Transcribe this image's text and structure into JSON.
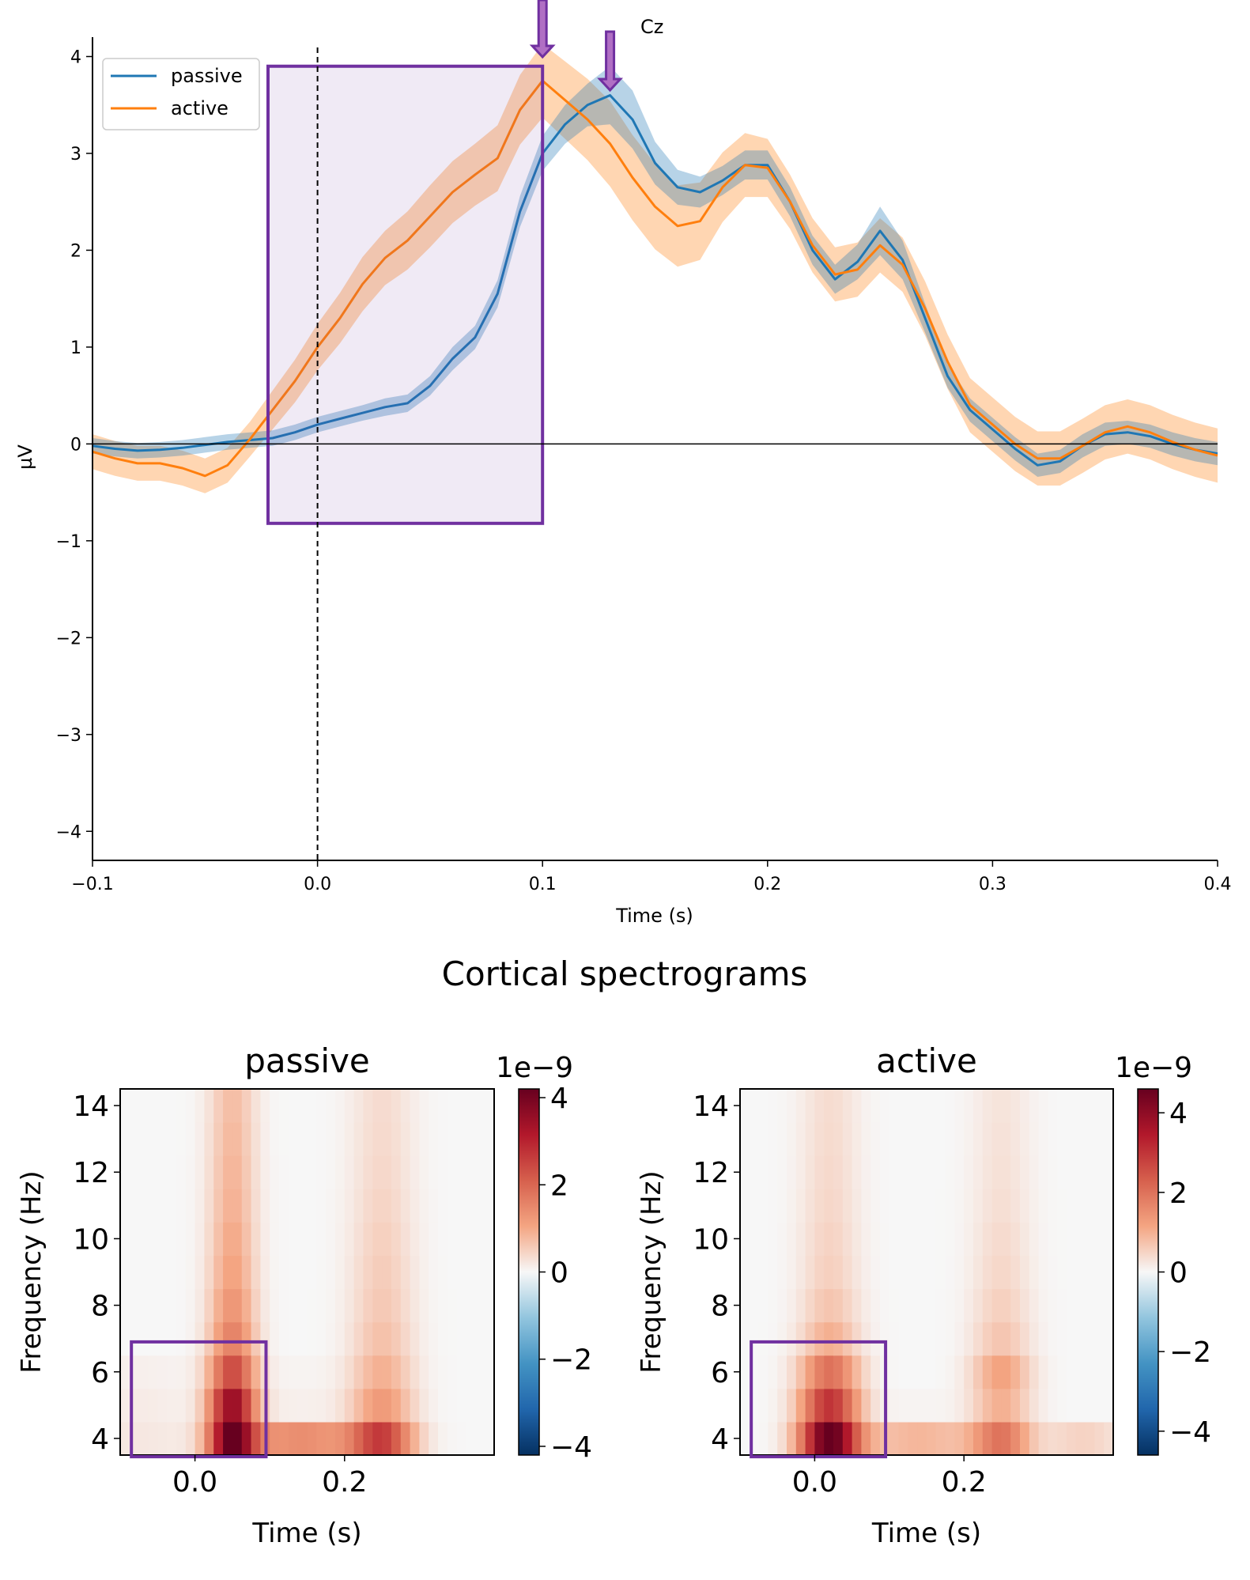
{
  "chart_data": [
    {
      "type": "line",
      "title": "Cz",
      "xlabel": "Time (s)",
      "ylabel": "µV",
      "xlim": [
        -0.1,
        0.4
      ],
      "ylim": [
        -4.3,
        4.2
      ],
      "xticks": [
        -0.1,
        0.0,
        0.1,
        0.2,
        0.3,
        0.4
      ],
      "xtick_labels": [
        "−0.1",
        "0.0",
        "0.1",
        "0.2",
        "0.3",
        "0.4"
      ],
      "yticks": [
        4,
        3,
        2,
        1,
        0,
        -1,
        -2,
        -3,
        -4
      ],
      "ytick_labels": [
        "4",
        "3",
        "2",
        "1",
        "0",
        "−1",
        "−2",
        "−3",
        "−4"
      ],
      "legend_position": "top-left",
      "zero_line": true,
      "stimulus_onset_line_x": 0.0,
      "highlight_window": {
        "x": [
          -0.022,
          0.1
        ],
        "y": [
          -0.82,
          3.9
        ],
        "color": "#7030a0"
      },
      "peak_arrows": [
        {
          "x": 0.1
        },
        {
          "x": 0.13
        }
      ],
      "series": [
        {
          "name": "passive",
          "color": "#1f77b4",
          "x": [
            -0.1,
            -0.09,
            -0.08,
            -0.07,
            -0.06,
            -0.05,
            -0.04,
            -0.03,
            -0.02,
            -0.01,
            0.0,
            0.01,
            0.02,
            0.03,
            0.04,
            0.05,
            0.06,
            0.07,
            0.08,
            0.09,
            0.1,
            0.11,
            0.12,
            0.13,
            0.14,
            0.15,
            0.16,
            0.17,
            0.18,
            0.19,
            0.2,
            0.21,
            0.22,
            0.23,
            0.24,
            0.25,
            0.26,
            0.27,
            0.28,
            0.29,
            0.3,
            0.31,
            0.32,
            0.33,
            0.34,
            0.35,
            0.36,
            0.37,
            0.38,
            0.39,
            0.4
          ],
          "y": [
            -0.02,
            -0.05,
            -0.07,
            -0.06,
            -0.04,
            -0.01,
            0.02,
            0.04,
            0.06,
            0.12,
            0.2,
            0.26,
            0.32,
            0.38,
            0.42,
            0.6,
            0.88,
            1.1,
            1.55,
            2.4,
            3.0,
            3.3,
            3.5,
            3.6,
            3.35,
            2.9,
            2.65,
            2.6,
            2.72,
            2.88,
            2.88,
            2.5,
            2.0,
            1.7,
            1.88,
            2.2,
            1.9,
            1.3,
            0.7,
            0.35,
            0.15,
            -0.05,
            -0.22,
            -0.18,
            -0.02,
            0.1,
            0.12,
            0.08,
            0.0,
            -0.06,
            -0.1
          ],
          "ci": [
            0.08,
            0.08,
            0.08,
            0.08,
            0.08,
            0.08,
            0.08,
            0.08,
            0.08,
            0.08,
            0.08,
            0.08,
            0.08,
            0.09,
            0.09,
            0.1,
            0.12,
            0.12,
            0.14,
            0.16,
            0.18,
            0.2,
            0.22,
            0.3,
            0.3,
            0.22,
            0.18,
            0.16,
            0.15,
            0.15,
            0.15,
            0.15,
            0.15,
            0.15,
            0.18,
            0.25,
            0.2,
            0.15,
            0.12,
            0.12,
            0.12,
            0.12,
            0.12,
            0.12,
            0.12,
            0.12,
            0.12,
            0.12,
            0.12,
            0.12,
            0.12
          ]
        },
        {
          "name": "active",
          "color": "#ff7f0e",
          "x": [
            -0.1,
            -0.09,
            -0.08,
            -0.07,
            -0.06,
            -0.05,
            -0.04,
            -0.03,
            -0.02,
            -0.01,
            0.0,
            0.01,
            0.02,
            0.03,
            0.04,
            0.05,
            0.06,
            0.07,
            0.08,
            0.09,
            0.1,
            0.11,
            0.12,
            0.13,
            0.14,
            0.15,
            0.16,
            0.17,
            0.18,
            0.19,
            0.2,
            0.21,
            0.22,
            0.23,
            0.24,
            0.25,
            0.26,
            0.27,
            0.28,
            0.29,
            0.3,
            0.31,
            0.32,
            0.33,
            0.34,
            0.35,
            0.36,
            0.37,
            0.38,
            0.39,
            0.4
          ],
          "y": [
            -0.08,
            -0.15,
            -0.2,
            -0.2,
            -0.25,
            -0.33,
            -0.22,
            0.05,
            0.35,
            0.65,
            1.0,
            1.3,
            1.65,
            1.92,
            2.1,
            2.35,
            2.6,
            2.78,
            2.95,
            3.45,
            3.75,
            3.55,
            3.35,
            3.1,
            2.75,
            2.45,
            2.25,
            2.3,
            2.65,
            2.88,
            2.85,
            2.5,
            2.05,
            1.75,
            1.8,
            2.05,
            1.85,
            1.4,
            0.85,
            0.4,
            0.2,
            0.0,
            -0.15,
            -0.15,
            -0.02,
            0.12,
            0.18,
            0.12,
            0.02,
            -0.06,
            -0.12
          ],
          "ci": [
            0.18,
            0.18,
            0.18,
            0.18,
            0.18,
            0.18,
            0.18,
            0.18,
            0.2,
            0.22,
            0.24,
            0.26,
            0.28,
            0.28,
            0.3,
            0.32,
            0.32,
            0.32,
            0.34,
            0.36,
            0.38,
            0.4,
            0.42,
            0.44,
            0.44,
            0.44,
            0.42,
            0.4,
            0.36,
            0.33,
            0.3,
            0.28,
            0.28,
            0.28,
            0.28,
            0.28,
            0.28,
            0.28,
            0.28,
            0.28,
            0.28,
            0.28,
            0.28,
            0.28,
            0.28,
            0.28,
            0.28,
            0.28,
            0.28,
            0.28,
            0.28
          ]
        }
      ]
    },
    {
      "type": "heatmap",
      "title": "passive",
      "suptitle": "Cortical spectrograms",
      "xlabel": "Time (s)",
      "ylabel": "Frequency (Hz)",
      "xlim": [
        -0.1,
        0.4
      ],
      "ylim": [
        3.5,
        14.5
      ],
      "xticks": [
        0.0,
        0.2
      ],
      "xtick_labels": [
        "0.0",
        "0.2"
      ],
      "yticks": [
        4,
        6,
        8,
        10,
        12,
        14
      ],
      "ytick_labels": [
        "4",
        "6",
        "8",
        "10",
        "12",
        "14"
      ],
      "colorbar": {
        "range": [
          -4.2,
          4.2
        ],
        "ticks": [
          4,
          2,
          0,
          -2,
          -4
        ],
        "tick_labels": [
          "4",
          "2",
          "0",
          "−2",
          "−4"
        ],
        "offset_label": "1e−9",
        "cmap": "RdBu_r"
      },
      "highlight_window": {
        "x": [
          -0.085,
          0.095
        ],
        "y": [
          3.45,
          6.9
        ],
        "color": "#7030a0"
      },
      "frequencies": [
        4,
        5,
        6,
        7,
        8,
        9,
        10,
        11,
        12,
        13,
        14
      ],
      "components": [
        {
          "t": 0.05,
          "width": 0.022,
          "f_amp": [
            4.0,
            3.5,
            2.4,
            1.6,
            1.3,
            1.1,
            1.0,
            0.9,
            0.85,
            0.8,
            0.75
          ]
        },
        {
          "t": 0.25,
          "width": 0.03,
          "f_amp": [
            2.4,
            1.2,
            0.9,
            0.7,
            0.6,
            0.55,
            0.5,
            0.45,
            0.4,
            0.38,
            0.36
          ]
        },
        {
          "t": 0.14,
          "width": 0.06,
          "f_amp": [
            1.4,
            0.1,
            0.05,
            0.0,
            0.0,
            0.0,
            0.0,
            0.0,
            0.0,
            0.0,
            0.0
          ]
        },
        {
          "t": -0.08,
          "width": 0.06,
          "f_amp": [
            0.2,
            0.15,
            0.1,
            0.0,
            0.0,
            0.0,
            0.0,
            0.0,
            0.0,
            0.0,
            0.0
          ]
        }
      ]
    },
    {
      "type": "heatmap",
      "title": "active",
      "xlabel": "Time (s)",
      "ylabel": "Frequency (Hz)",
      "xlim": [
        -0.1,
        0.4
      ],
      "ylim": [
        3.5,
        14.5
      ],
      "xticks": [
        0.0,
        0.2
      ],
      "xtick_labels": [
        "0.0",
        "0.2"
      ],
      "yticks": [
        4,
        6,
        8,
        10,
        12,
        14
      ],
      "ytick_labels": [
        "4",
        "6",
        "8",
        "10",
        "12",
        "14"
      ],
      "colorbar": {
        "range": [
          -4.6,
          4.6
        ],
        "ticks": [
          4,
          2,
          0,
          -2,
          -4
        ],
        "tick_labels": [
          "4",
          "2",
          "0",
          "−2",
          "−4"
        ],
        "offset_label": "1e−9",
        "cmap": "RdBu_r"
      },
      "highlight_window": {
        "x": [
          -0.085,
          0.095
        ],
        "y": [
          3.45,
          6.9
        ],
        "color": "#7030a0"
      },
      "frequencies": [
        4,
        5,
        6,
        7,
        8,
        9,
        10,
        11,
        12,
        13,
        14
      ],
      "components": [
        {
          "t": 0.02,
          "width": 0.028,
          "f_amp": [
            4.6,
            3.0,
            2.0,
            1.0,
            0.7,
            0.55,
            0.5,
            0.45,
            0.42,
            0.4,
            0.38
          ]
        },
        {
          "t": 0.25,
          "width": 0.028,
          "f_amp": [
            1.8,
            1.0,
            1.2,
            0.7,
            0.55,
            0.45,
            0.4,
            0.35,
            0.32,
            0.3,
            0.28
          ]
        },
        {
          "t": 0.14,
          "width": 0.06,
          "f_amp": [
            0.9,
            0.05,
            0.0,
            0.0,
            0.0,
            0.0,
            0.0,
            0.0,
            0.0,
            0.0,
            0.0
          ]
        },
        {
          "t": 0.36,
          "width": 0.04,
          "f_amp": [
            0.5,
            0.0,
            0.0,
            0.0,
            0.0,
            0.0,
            0.0,
            0.0,
            0.0,
            0.0,
            0.0
          ]
        }
      ]
    }
  ]
}
